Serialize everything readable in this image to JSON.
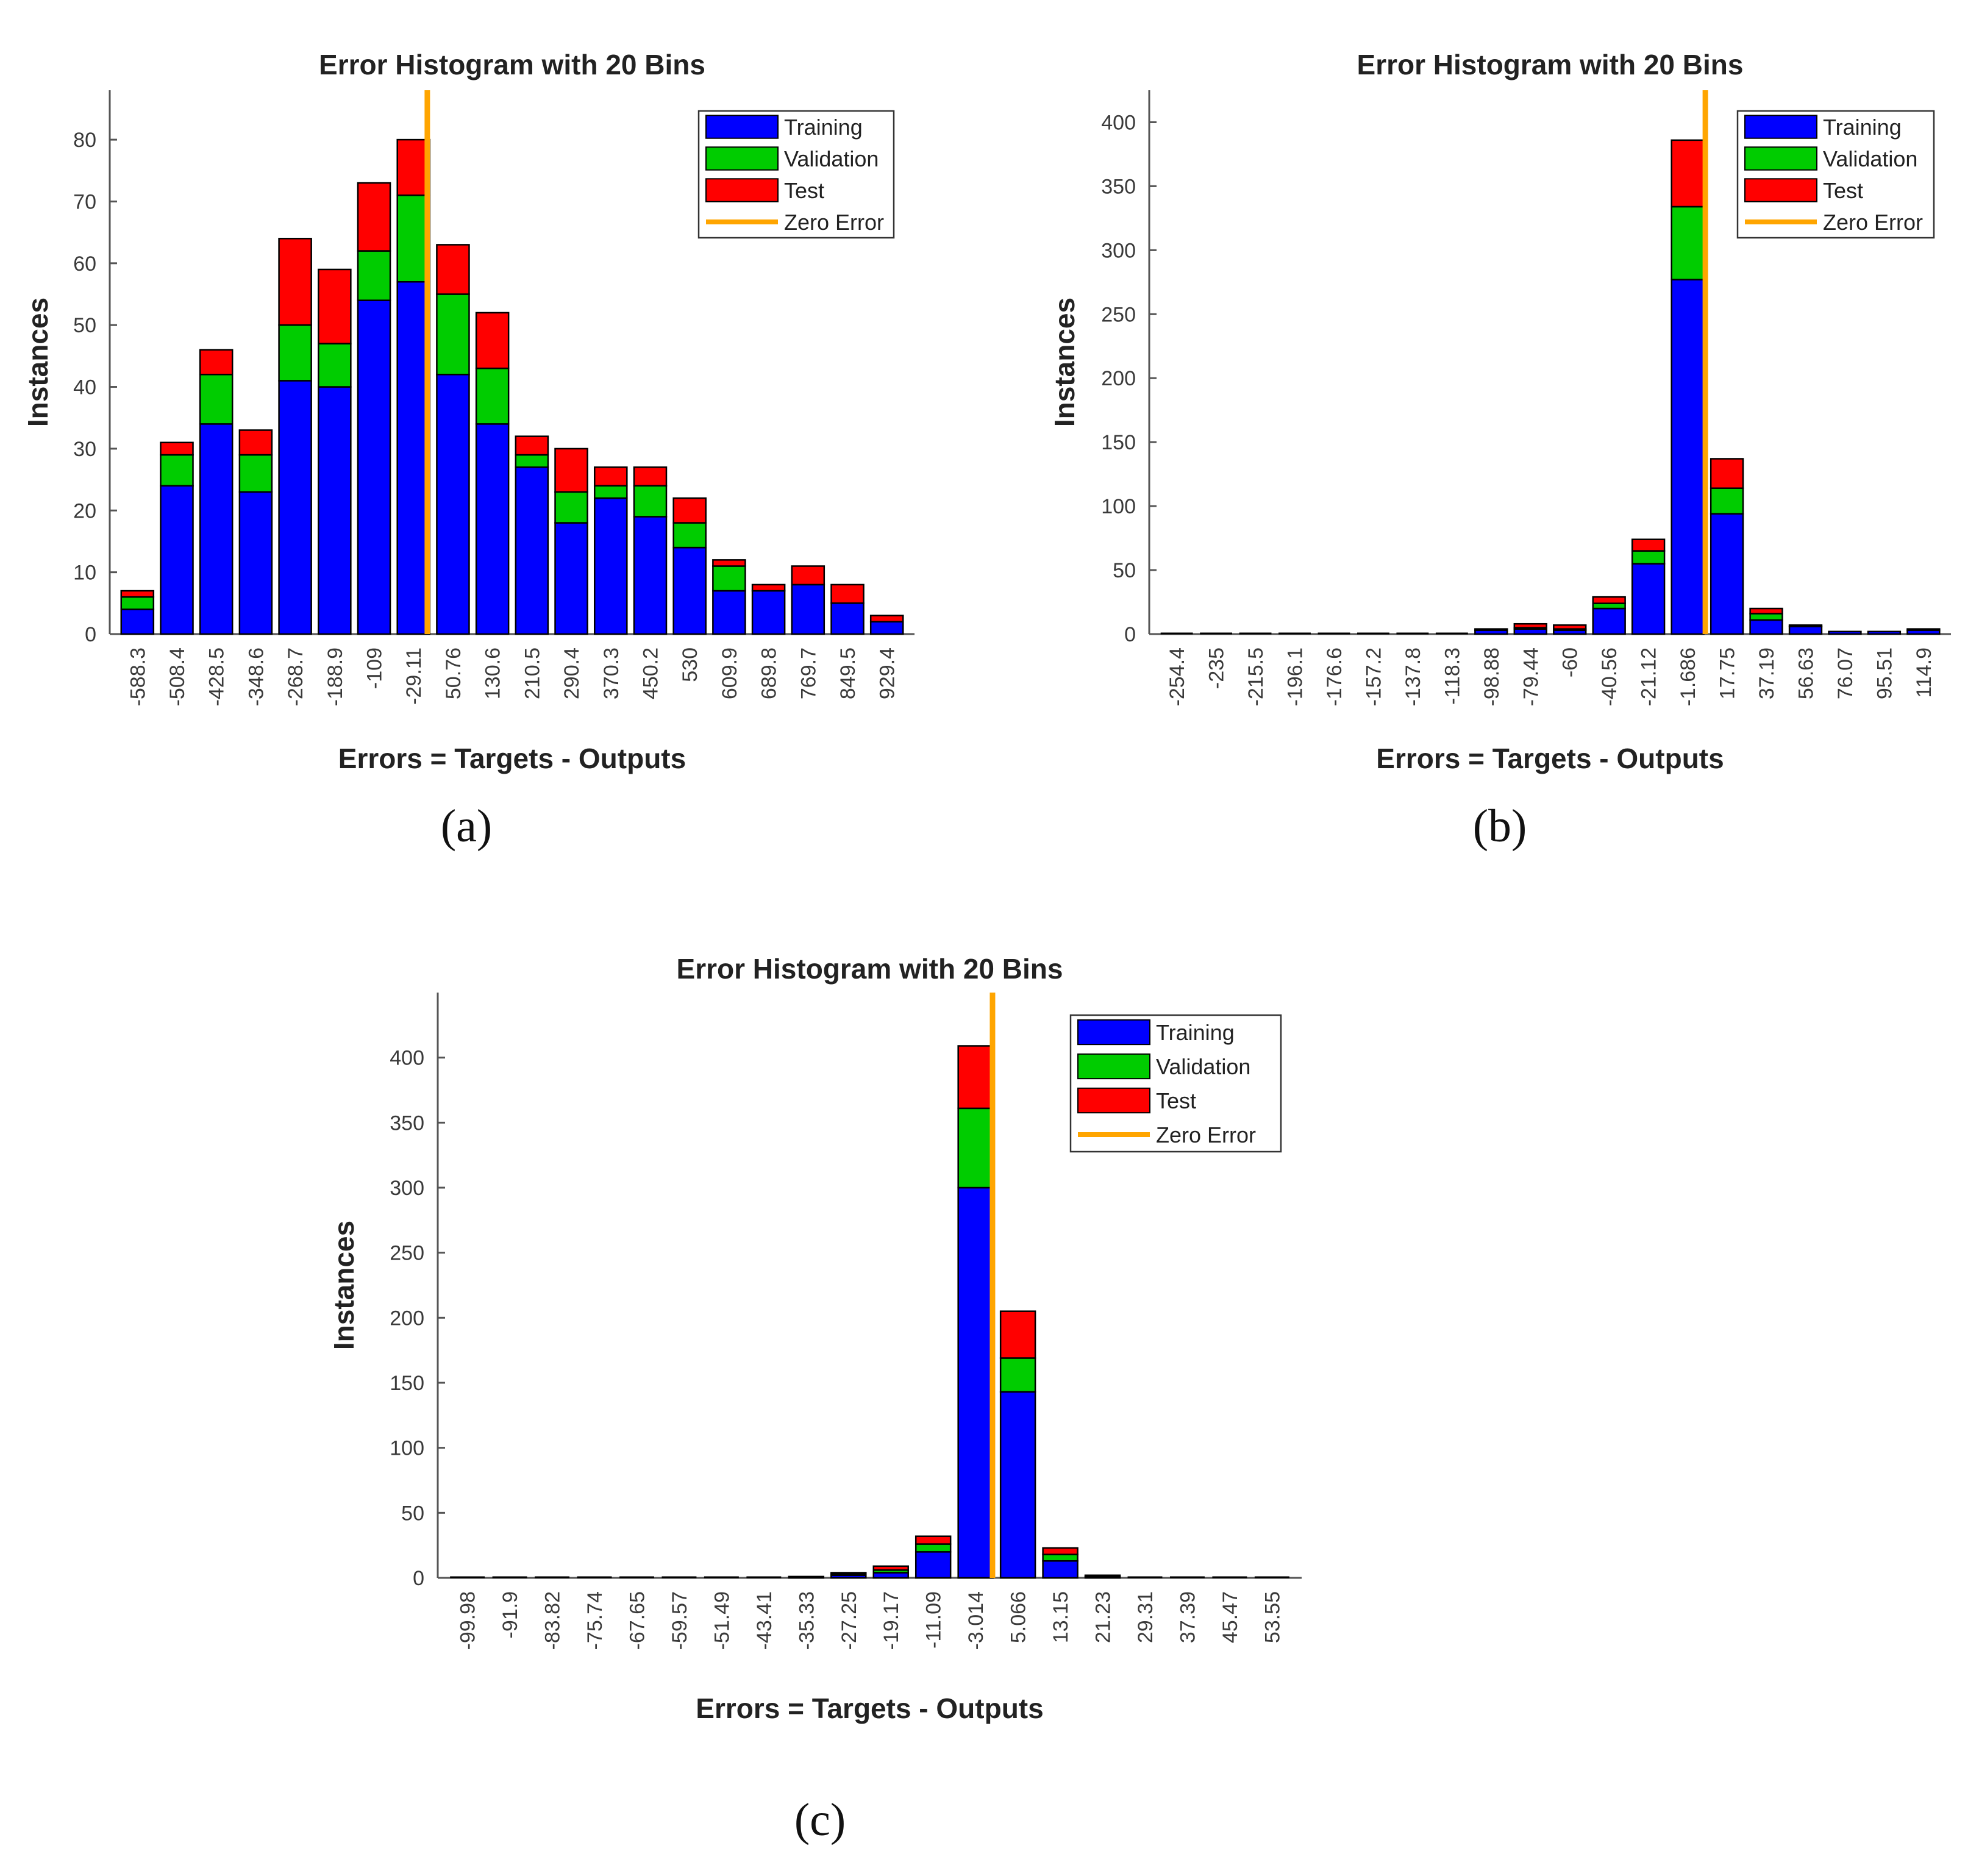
{
  "colors": {
    "training": "#0000FF",
    "validation": "#00CC00",
    "test": "#FF0000",
    "zero_error": "#FFA500",
    "bar_edge": "#000000",
    "axis": "#555555"
  },
  "chart_data": [
    {
      "id": "a",
      "panel_label": "(a)",
      "type": "bar",
      "stacked": true,
      "title": "Error Histogram with 20 Bins",
      "xlabel": "Errors = Targets - Outputs",
      "ylabel": "Instances",
      "categories": [
        "-588.3",
        "-508.4",
        "-428.5",
        "-348.6",
        "-268.7",
        "-188.9",
        "-109",
        "-29.11",
        "50.76",
        "130.6",
        "210.5",
        "290.4",
        "370.3",
        "450.2",
        "530",
        "609.9",
        "689.8",
        "769.7",
        "849.5",
        "929.4"
      ],
      "series": [
        {
          "name": "Training",
          "color_key": "training",
          "values": [
            4,
            24,
            34,
            23,
            41,
            40,
            54,
            57,
            42,
            34,
            27,
            18,
            22,
            19,
            14,
            7,
            7,
            8,
            5,
            2
          ]
        },
        {
          "name": "Validation",
          "color_key": "validation",
          "values": [
            2,
            5,
            8,
            6,
            9,
            7,
            8,
            14,
            13,
            9,
            2,
            5,
            2,
            5,
            4,
            4,
            0,
            0,
            0,
            0
          ]
        },
        {
          "name": "Test",
          "color_key": "test",
          "values": [
            1,
            2,
            4,
            4,
            14,
            12,
            11,
            9,
            8,
            9,
            3,
            7,
            3,
            3,
            4,
            1,
            1,
            3,
            3,
            1
          ]
        }
      ],
      "ylim": [
        0,
        88
      ],
      "yticks": [
        0,
        10,
        20,
        30,
        40,
        50,
        60,
        70,
        80
      ],
      "zero_error_at": 7.35,
      "legend": [
        "Training",
        "Validation",
        "Test",
        "Zero Error"
      ],
      "legend_position": "top-right"
    },
    {
      "id": "b",
      "panel_label": "(b)",
      "type": "bar",
      "stacked": true,
      "title": "Error Histogram with 20 Bins",
      "xlabel": "Errors = Targets - Outputs",
      "ylabel": "Instances",
      "categories": [
        "-254.4",
        "-235",
        "-215.5",
        "-196.1",
        "-176.6",
        "-157.2",
        "-137.8",
        "-118.3",
        "-98.88",
        "-79.44",
        "-60",
        "-40.56",
        "-21.12",
        "-1.686",
        "17.75",
        "37.19",
        "56.63",
        "76.07",
        "95.51",
        "114.9"
      ],
      "series": [
        {
          "name": "Training",
          "color_key": "training",
          "values": [
            0,
            0,
            0,
            0,
            0,
            0,
            0,
            0,
            3,
            4,
            3,
            20,
            55,
            277,
            94,
            11,
            6,
            2,
            2,
            3
          ]
        },
        {
          "name": "Validation",
          "color_key": "validation",
          "values": [
            0,
            0,
            0,
            0,
            0,
            0,
            0,
            0,
            0,
            1,
            1,
            4,
            10,
            57,
            20,
            5,
            1,
            0,
            0,
            0
          ]
        },
        {
          "name": "Test",
          "color_key": "test",
          "values": [
            0,
            0,
            0,
            0,
            0,
            0,
            0,
            0,
            1,
            3,
            3,
            5,
            9,
            52,
            23,
            4,
            0,
            0,
            0,
            1
          ]
        }
      ],
      "ylim": [
        0,
        425
      ],
      "yticks": [
        0,
        50,
        100,
        150,
        200,
        250,
        300,
        350,
        400
      ],
      "zero_error_at": 13.45,
      "legend": [
        "Training",
        "Validation",
        "Test",
        "Zero Error"
      ],
      "legend_position": "top-right"
    },
    {
      "id": "c",
      "panel_label": "(c)",
      "type": "bar",
      "stacked": true,
      "title": "Error Histogram with 20 Bins",
      "xlabel": "Errors = Targets - Outputs",
      "ylabel": "Instances",
      "categories": [
        "-99.98",
        "-91.9",
        "-83.82",
        "-75.74",
        "-67.65",
        "-59.57",
        "-51.49",
        "-43.41",
        "-35.33",
        "-27.25",
        "-19.17",
        "-11.09",
        "-3.014",
        "5.066",
        "13.15",
        "21.23",
        "29.31",
        "37.39",
        "45.47",
        "53.55"
      ],
      "series": [
        {
          "name": "Training",
          "color_key": "training",
          "values": [
            0,
            0,
            0,
            0,
            0,
            0,
            0,
            0,
            1,
            2,
            4,
            20,
            300,
            143,
            13,
            1,
            0,
            0,
            0,
            0
          ]
        },
        {
          "name": "Validation",
          "color_key": "validation",
          "values": [
            0,
            0,
            0,
            0,
            0,
            0,
            0,
            0,
            0,
            1,
            2,
            6,
            61,
            26,
            5,
            0,
            0,
            0,
            0,
            0
          ]
        },
        {
          "name": "Test",
          "color_key": "test",
          "values": [
            0,
            0,
            0,
            0,
            0,
            0,
            0,
            0,
            0,
            1,
            3,
            6,
            48,
            36,
            5,
            1,
            0,
            0,
            0,
            0
          ]
        }
      ],
      "ylim": [
        0,
        450
      ],
      "yticks": [
        0,
        50,
        100,
        150,
        200,
        250,
        300,
        350,
        400
      ],
      "zero_error_at": 12.4,
      "legend": [
        "Training",
        "Validation",
        "Test",
        "Zero Error"
      ],
      "legend_position": "top-right"
    }
  ]
}
